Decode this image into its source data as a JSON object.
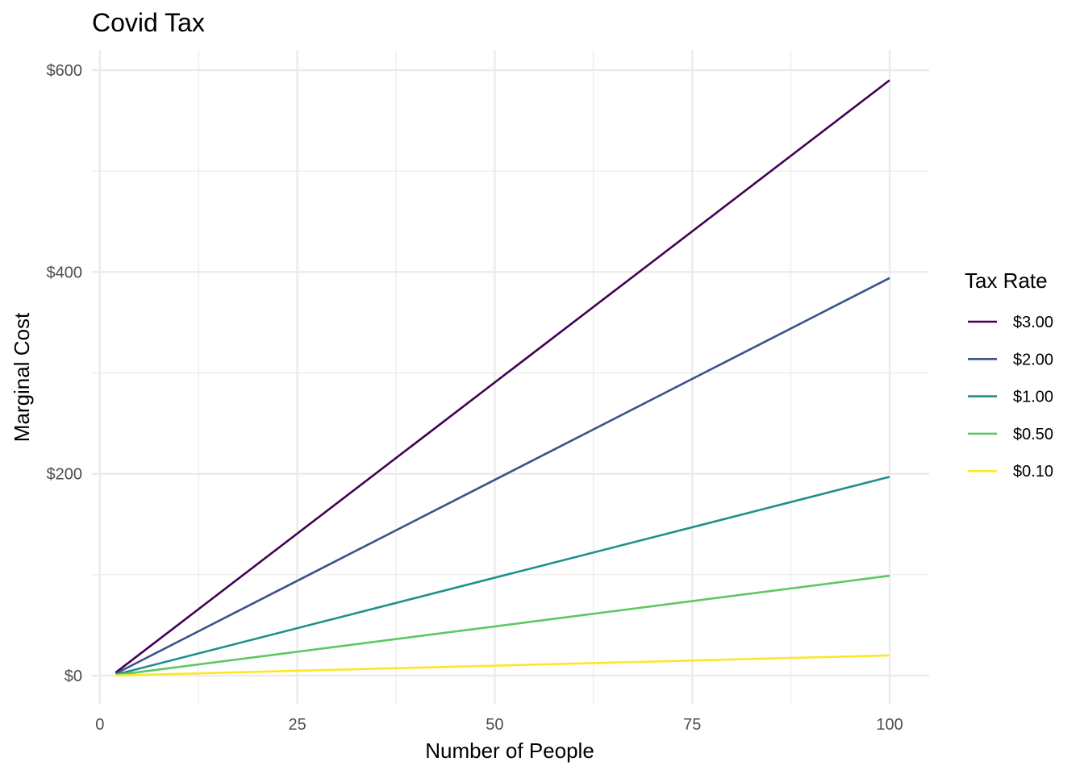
{
  "chart_data": {
    "type": "line",
    "title": "Covid Tax",
    "xlabel": "Number of People",
    "ylabel": "Marginal Cost",
    "xlim": [
      -1,
      105
    ],
    "ylim": [
      -28,
      620
    ],
    "x_ticks": [
      {
        "value": 0,
        "label": "0"
      },
      {
        "value": 25,
        "label": "25"
      },
      {
        "value": 50,
        "label": "50"
      },
      {
        "value": 75,
        "label": "75"
      },
      {
        "value": 100,
        "label": "100"
      }
    ],
    "y_ticks": [
      {
        "value": 0,
        "label": "$0"
      },
      {
        "value": 200,
        "label": "$200"
      },
      {
        "value": 400,
        "label": "$400"
      },
      {
        "value": 600,
        "label": "$600"
      }
    ],
    "grid": true,
    "legend": {
      "title": "Tax Rate",
      "position": "right"
    },
    "series": [
      {
        "name": "$3.00",
        "color": "#440154",
        "x": [
          2,
          100
        ],
        "values": [
          3,
          590
        ]
      },
      {
        "name": "$2.00",
        "color": "#3B528B",
        "x": [
          2,
          100
        ],
        "values": [
          2,
          394
        ]
      },
      {
        "name": "$1.00",
        "color": "#21908C",
        "x": [
          2,
          100
        ],
        "values": [
          1,
          197
        ]
      },
      {
        "name": "$0.50",
        "color": "#5DC863",
        "x": [
          2,
          100
        ],
        "values": [
          0.5,
          99
        ]
      },
      {
        "name": "$0.10",
        "color": "#FDE725",
        "x": [
          2,
          100
        ],
        "values": [
          0.1,
          20
        ]
      }
    ]
  }
}
